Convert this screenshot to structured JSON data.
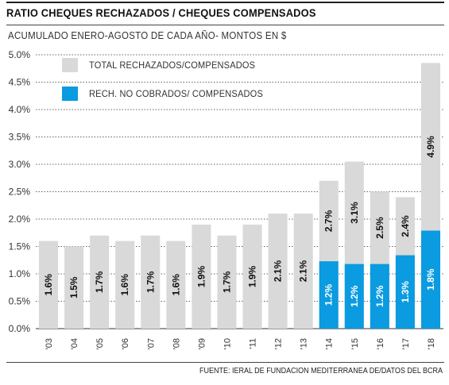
{
  "title": "RATIO CHEQUES RECHAZADOS / CHEQUES COMPENSADOS",
  "subtitle": "ACUMULADO ENERO-AGOSTO DE CADA AÑO- MONTOS EN $",
  "source": "FUENTE: IERAL DE FUNDACION MEDITERRANEA DE/DATOS DEL BCRA",
  "colors": {
    "total": "#d9d9d9",
    "no_cobrados": "#0a9be0",
    "grid": "#333333"
  },
  "legend": {
    "total_label": "TOTAL RECHAZADOS/COMPENSADOS",
    "no_cobrados_label": "RECH. NO COBRADOS/ COMPENSADOS"
  },
  "chart_data": {
    "type": "bar",
    "categories": [
      "'03",
      "'04",
      "'05",
      "'06",
      "'07",
      "'08",
      "'09",
      "'10",
      "'11",
      "'12",
      "'13",
      "'14",
      "'15",
      "'16",
      "'17",
      "'18"
    ],
    "series": [
      {
        "name": "TOTAL RECHAZADOS/COMPENSADOS",
        "values": [
          1.6,
          1.5,
          1.7,
          1.6,
          1.7,
          1.6,
          1.9,
          1.7,
          1.9,
          2.1,
          2.1,
          2.7,
          3.05,
          2.5,
          2.4,
          4.85
        ],
        "labels": [
          "1.6%",
          "1.5%",
          "1.7%",
          "1.6%",
          "1.7%",
          "1.6%",
          "1.9%",
          "1.7%",
          "1.9%",
          "2.1%",
          "2.1%",
          "2.7%",
          "3.1%",
          "2.5%",
          "2.4%",
          "4.9%"
        ]
      },
      {
        "name": "RECH. NO COBRADOS/ COMPENSADOS",
        "values": [
          null,
          null,
          null,
          null,
          null,
          null,
          null,
          null,
          null,
          null,
          null,
          1.23,
          1.18,
          1.18,
          1.34,
          1.79
        ],
        "labels": [
          "",
          "",
          "",
          "",
          "",
          "",
          "",
          "",
          "",
          "",
          "",
          "1.2%",
          "1.2%",
          "1.2%",
          "1.3%",
          "1.8%"
        ]
      }
    ],
    "yticks": [
      "0.0%",
      "0.5%",
      "1.0%",
      "1.5%",
      "2.0%",
      "2.5%",
      "3.0%",
      "3.5%",
      "4.0%",
      "4.5%",
      "5.0%"
    ],
    "ylim": [
      0,
      5
    ],
    "grid": true,
    "legend_position": "top-left"
  }
}
